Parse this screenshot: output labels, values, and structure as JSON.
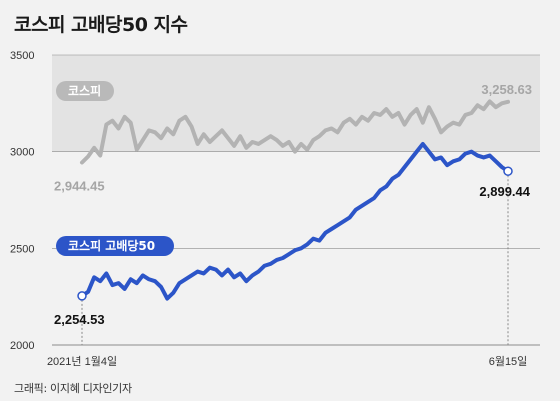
{
  "title": "코스피 고배당50 지수",
  "credit": "그래픽: 이지혜 디자인기자",
  "colors": {
    "kospi": "#b3b3b3",
    "high_dividend": "#2c55c8",
    "band": "#e3e3e3",
    "background": "#f2f2f2",
    "grid": "#8c8c8c"
  },
  "chart_data": {
    "type": "line",
    "title": "코스피 고배당50 지수",
    "y_ticks": [
      "3500",
      "3000",
      "2500",
      "2000"
    ],
    "ylim": [
      2000,
      3500
    ],
    "x_labels": [
      "2021년 1월4일",
      "6월15일"
    ],
    "grid": true,
    "series": [
      {
        "name": "코스피",
        "start_value": 2944.45,
        "end_value": 3258.63,
        "start_label": "2,944.45",
        "end_label": "3,258.63",
        "values": [
          2944,
          2975,
          3020,
          2980,
          3140,
          3160,
          3120,
          3180,
          3150,
          3010,
          3060,
          3110,
          3100,
          3070,
          3120,
          3090,
          3160,
          3180,
          3130,
          3040,
          3090,
          3050,
          3080,
          3110,
          3070,
          3030,
          3080,
          3020,
          3050,
          3040,
          3060,
          3080,
          3060,
          3030,
          3050,
          3000,
          3040,
          3010,
          3060,
          3080,
          3110,
          3120,
          3100,
          3150,
          3170,
          3140,
          3180,
          3160,
          3200,
          3190,
          3220,
          3180,
          3200,
          3140,
          3190,
          3220,
          3150,
          3230,
          3170,
          3100,
          3130,
          3150,
          3140,
          3190,
          3200,
          3240,
          3220,
          3260,
          3230,
          3250,
          3258
        ]
      },
      {
        "name": "코스피 고배당50",
        "start_value": 2254.53,
        "end_value": 2899.44,
        "start_label": "2,254.53",
        "end_label": "2,899.44",
        "values": [
          2254,
          2275,
          2350,
          2330,
          2370,
          2310,
          2320,
          2290,
          2340,
          2320,
          2360,
          2340,
          2330,
          2300,
          2240,
          2270,
          2320,
          2340,
          2360,
          2380,
          2370,
          2400,
          2390,
          2360,
          2390,
          2350,
          2370,
          2330,
          2360,
          2380,
          2410,
          2420,
          2440,
          2450,
          2470,
          2490,
          2500,
          2520,
          2550,
          2540,
          2580,
          2600,
          2620,
          2640,
          2660,
          2700,
          2720,
          2740,
          2760,
          2800,
          2820,
          2860,
          2880,
          2920,
          2960,
          3000,
          3040,
          3000,
          2960,
          2970,
          2930,
          2950,
          2960,
          2990,
          3000,
          2980,
          2970,
          2980,
          2950,
          2920,
          2899
        ]
      }
    ]
  }
}
